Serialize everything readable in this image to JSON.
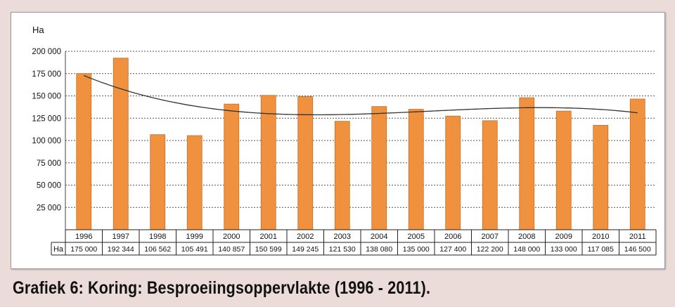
{
  "caption": "Grafiek 6: Koring: Besproeiingsoppervlakte (1996 - 2011).",
  "chart_data": {
    "type": "bar",
    "ylabel": "Ha",
    "row_label": "Ha",
    "categories": [
      "1996",
      "1997",
      "1998",
      "1999",
      "2000",
      "2001",
      "2002",
      "2003",
      "2004",
      "2005",
      "2006",
      "2007",
      "2008",
      "2009",
      "2010",
      "2011"
    ],
    "values": [
      175000,
      192344,
      106562,
      105491,
      140857,
      150599,
      149245,
      121530,
      138080,
      135000,
      127400,
      122200,
      148000,
      133000,
      117085,
      146500
    ],
    "value_labels": [
      "175 000",
      "192 344",
      "106 562",
      "105 491",
      "140 857",
      "150 599",
      "149 245",
      "121 530",
      "138 080",
      "135 000",
      "127 400",
      "122 200",
      "148 000",
      "133 000",
      "117 085",
      "146 500"
    ],
    "yticks": [
      0,
      25000,
      50000,
      75000,
      100000,
      125000,
      150000,
      175000,
      200000
    ],
    "ytick_labels": [
      "",
      "25 000",
      "50 000",
      "75 000",
      "100 000",
      "125 000",
      "150 000",
      "175 000",
      "200 000"
    ],
    "ylim": [
      0,
      200000
    ],
    "grid": true,
    "trendline": true,
    "colors": {
      "bar": "#f0913f",
      "bar_edge": "#c86e22",
      "trend": "#333333",
      "grid": "#555555"
    }
  }
}
